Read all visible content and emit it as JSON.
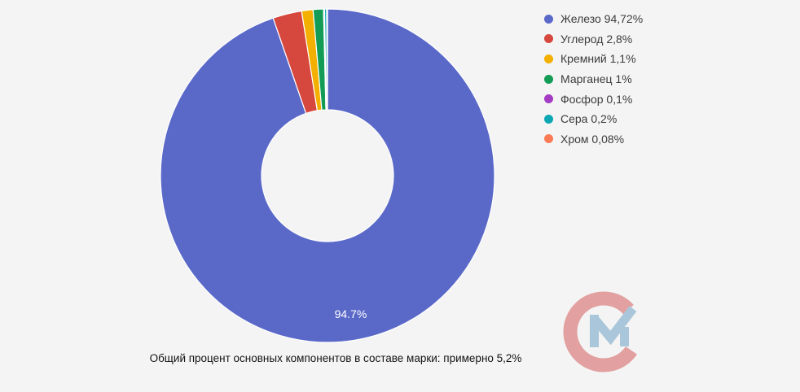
{
  "page": {
    "background_color": "#f4f4f4"
  },
  "chart_data": {
    "type": "pie",
    "subtype": "donut",
    "title": "",
    "caption": "Общий процент основных компонентов в составе марки: примерно 5,2%",
    "legend_position": "top-right",
    "direction": "clockwise",
    "start_angle_deg": 0,
    "inner_radius_ratio": 0.395,
    "slices": [
      {
        "label": "Железо",
        "value": 94.72,
        "legend_text": "Железо 94,72%",
        "color": "#5a69c8"
      },
      {
        "label": "Углерод",
        "value": 2.8,
        "legend_text": "Углерод 2,8%",
        "color": "#d6473e"
      },
      {
        "label": "Кремний",
        "value": 1.1,
        "legend_text": "Кремний 1,1%",
        "color": "#f3b000"
      },
      {
        "label": "Марганец",
        "value": 1.0,
        "legend_text": "Марганец 1%",
        "color": "#139c56"
      },
      {
        "label": "Фосфор",
        "value": 0.1,
        "legend_text": "Фосфор 0,1%",
        "color": "#a43bc3"
      },
      {
        "label": "Сера",
        "value": 0.2,
        "legend_text": "Сера 0,2%",
        "color": "#0da7b3"
      },
      {
        "label": "Хром",
        "value": 0.08,
        "legend_text": "Хром 0,08%",
        "color": "#fa7b55"
      }
    ],
    "slice_label": {
      "text": "94.7%",
      "on_slice": "Железо",
      "color": "#ffffff"
    }
  },
  "watermark": {
    "description": "CM check-mark logo",
    "c_color": "#e2a0a0",
    "m_color": "#a9c6da"
  }
}
